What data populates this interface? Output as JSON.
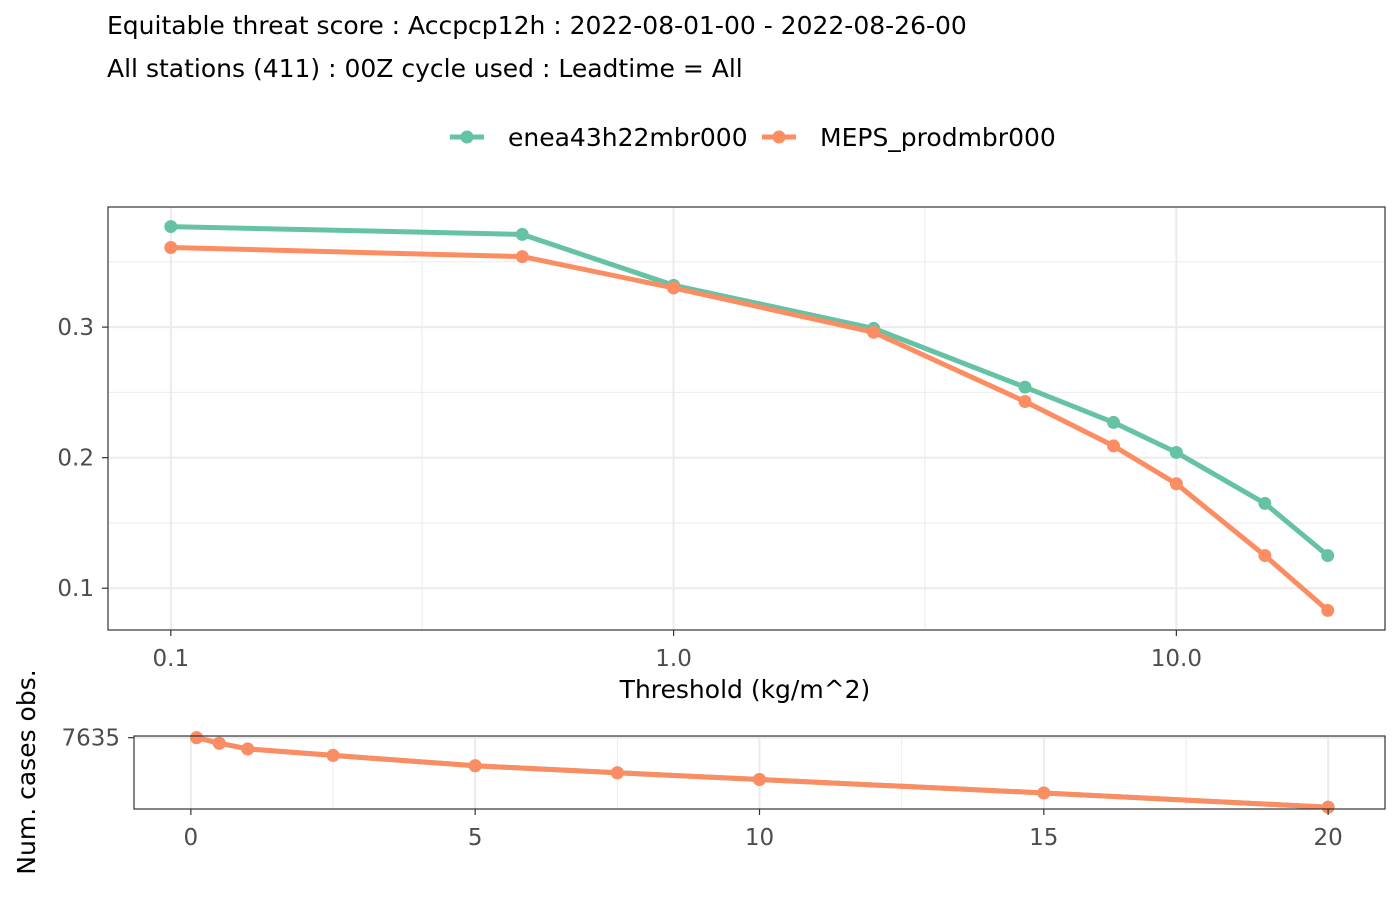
{
  "chart_data": [
    {
      "type": "line",
      "title": "Equitable threat score : Accpcp12h : 2022-08-01-00 - 2022-08-26-00",
      "subtitle": "All stations (411) : 00Z cycle used : Leadtime = All",
      "xlabel": "Threshold (kg/m^2)",
      "ylabel": "",
      "xscale": "log10",
      "xlim": [
        0.075,
        26
      ],
      "ylim": [
        0.068,
        0.392
      ],
      "xticks": [
        0.1,
        1.0,
        10.0
      ],
      "xtick_labels": [
        "0.1",
        "1.0",
        "10.0"
      ],
      "yticks": [
        0.1,
        0.2,
        0.3
      ],
      "ytick_labels": [
        "0.1",
        "0.2",
        "0.3"
      ],
      "grid": true,
      "legend_position": "top",
      "x": [
        0.1,
        0.5,
        1,
        2.5,
        5,
        7.5,
        10,
        15,
        20
      ],
      "series": [
        {
          "name": "enea43h22mbr000",
          "color": "#66c2a5",
          "values": [
            0.377,
            0.371,
            0.332,
            0.299,
            0.254,
            0.227,
            0.204,
            0.165,
            0.125
          ]
        },
        {
          "name": "MEPS_prodmbr000",
          "color": "#fc8d62",
          "values": [
            0.361,
            0.354,
            0.33,
            0.296,
            0.243,
            0.209,
            0.18,
            0.125,
            0.083
          ]
        }
      ]
    },
    {
      "type": "line",
      "xlabel": "",
      "ylabel": "Num. cases obs.",
      "xscale": "linear",
      "xlim": [
        -1,
        21
      ],
      "ylim": [
        4880,
        7700
      ],
      "xticks": [
        0,
        5,
        10,
        15,
        20
      ],
      "xtick_labels": [
        "0",
        "5",
        "10",
        "15",
        "20"
      ],
      "yticks": [
        7635
      ],
      "ytick_labels": [
        "7635"
      ],
      "grid": true,
      "x": [
        0.1,
        0.5,
        1,
        2.5,
        5,
        7.5,
        10,
        15,
        20
      ],
      "series": [
        {
          "name": "enea43h22mbr000",
          "color": "#66c2a5",
          "values": [
            7635,
            7420,
            7200,
            6950,
            6550,
            6280,
            6020,
            5500,
            4950
          ]
        },
        {
          "name": "MEPS_prodmbr000",
          "color": "#fc8d62",
          "values": [
            7635,
            7420,
            7200,
            6950,
            6550,
            6280,
            6020,
            5500,
            4950
          ]
        }
      ]
    }
  ]
}
